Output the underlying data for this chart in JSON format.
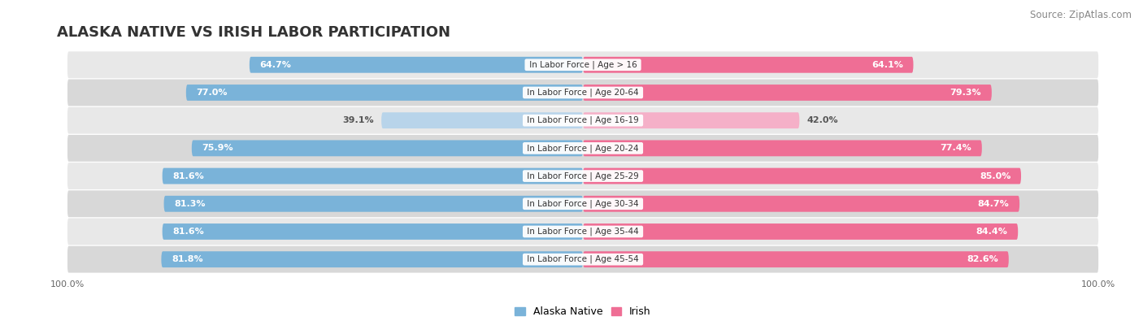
{
  "title": "ALASKA NATIVE VS IRISH LABOR PARTICIPATION",
  "source": "Source: ZipAtlas.com",
  "categories": [
    "In Labor Force | Age > 16",
    "In Labor Force | Age 20-64",
    "In Labor Force | Age 16-19",
    "In Labor Force | Age 20-24",
    "In Labor Force | Age 25-29",
    "In Labor Force | Age 30-34",
    "In Labor Force | Age 35-44",
    "In Labor Force | Age 45-54"
  ],
  "alaska_values": [
    64.7,
    77.0,
    39.1,
    75.9,
    81.6,
    81.3,
    81.6,
    81.8
  ],
  "irish_values": [
    64.1,
    79.3,
    42.0,
    77.4,
    85.0,
    84.7,
    84.4,
    82.6
  ],
  "alaska_color": "#7ab3d9",
  "alaska_color_light": "#b8d4ea",
  "irish_color": "#ef6e95",
  "irish_color_light": "#f5b0c8",
  "max_value": 100.0,
  "row_colors": [
    "#e8e8e8",
    "#d8d8d8"
  ],
  "legend_alaska": "Alaska Native",
  "legend_irish": "Irish",
  "title_fontsize": 13,
  "source_fontsize": 8.5,
  "label_fontsize": 8,
  "value_fontsize": 8,
  "cat_fontsize": 7.5
}
